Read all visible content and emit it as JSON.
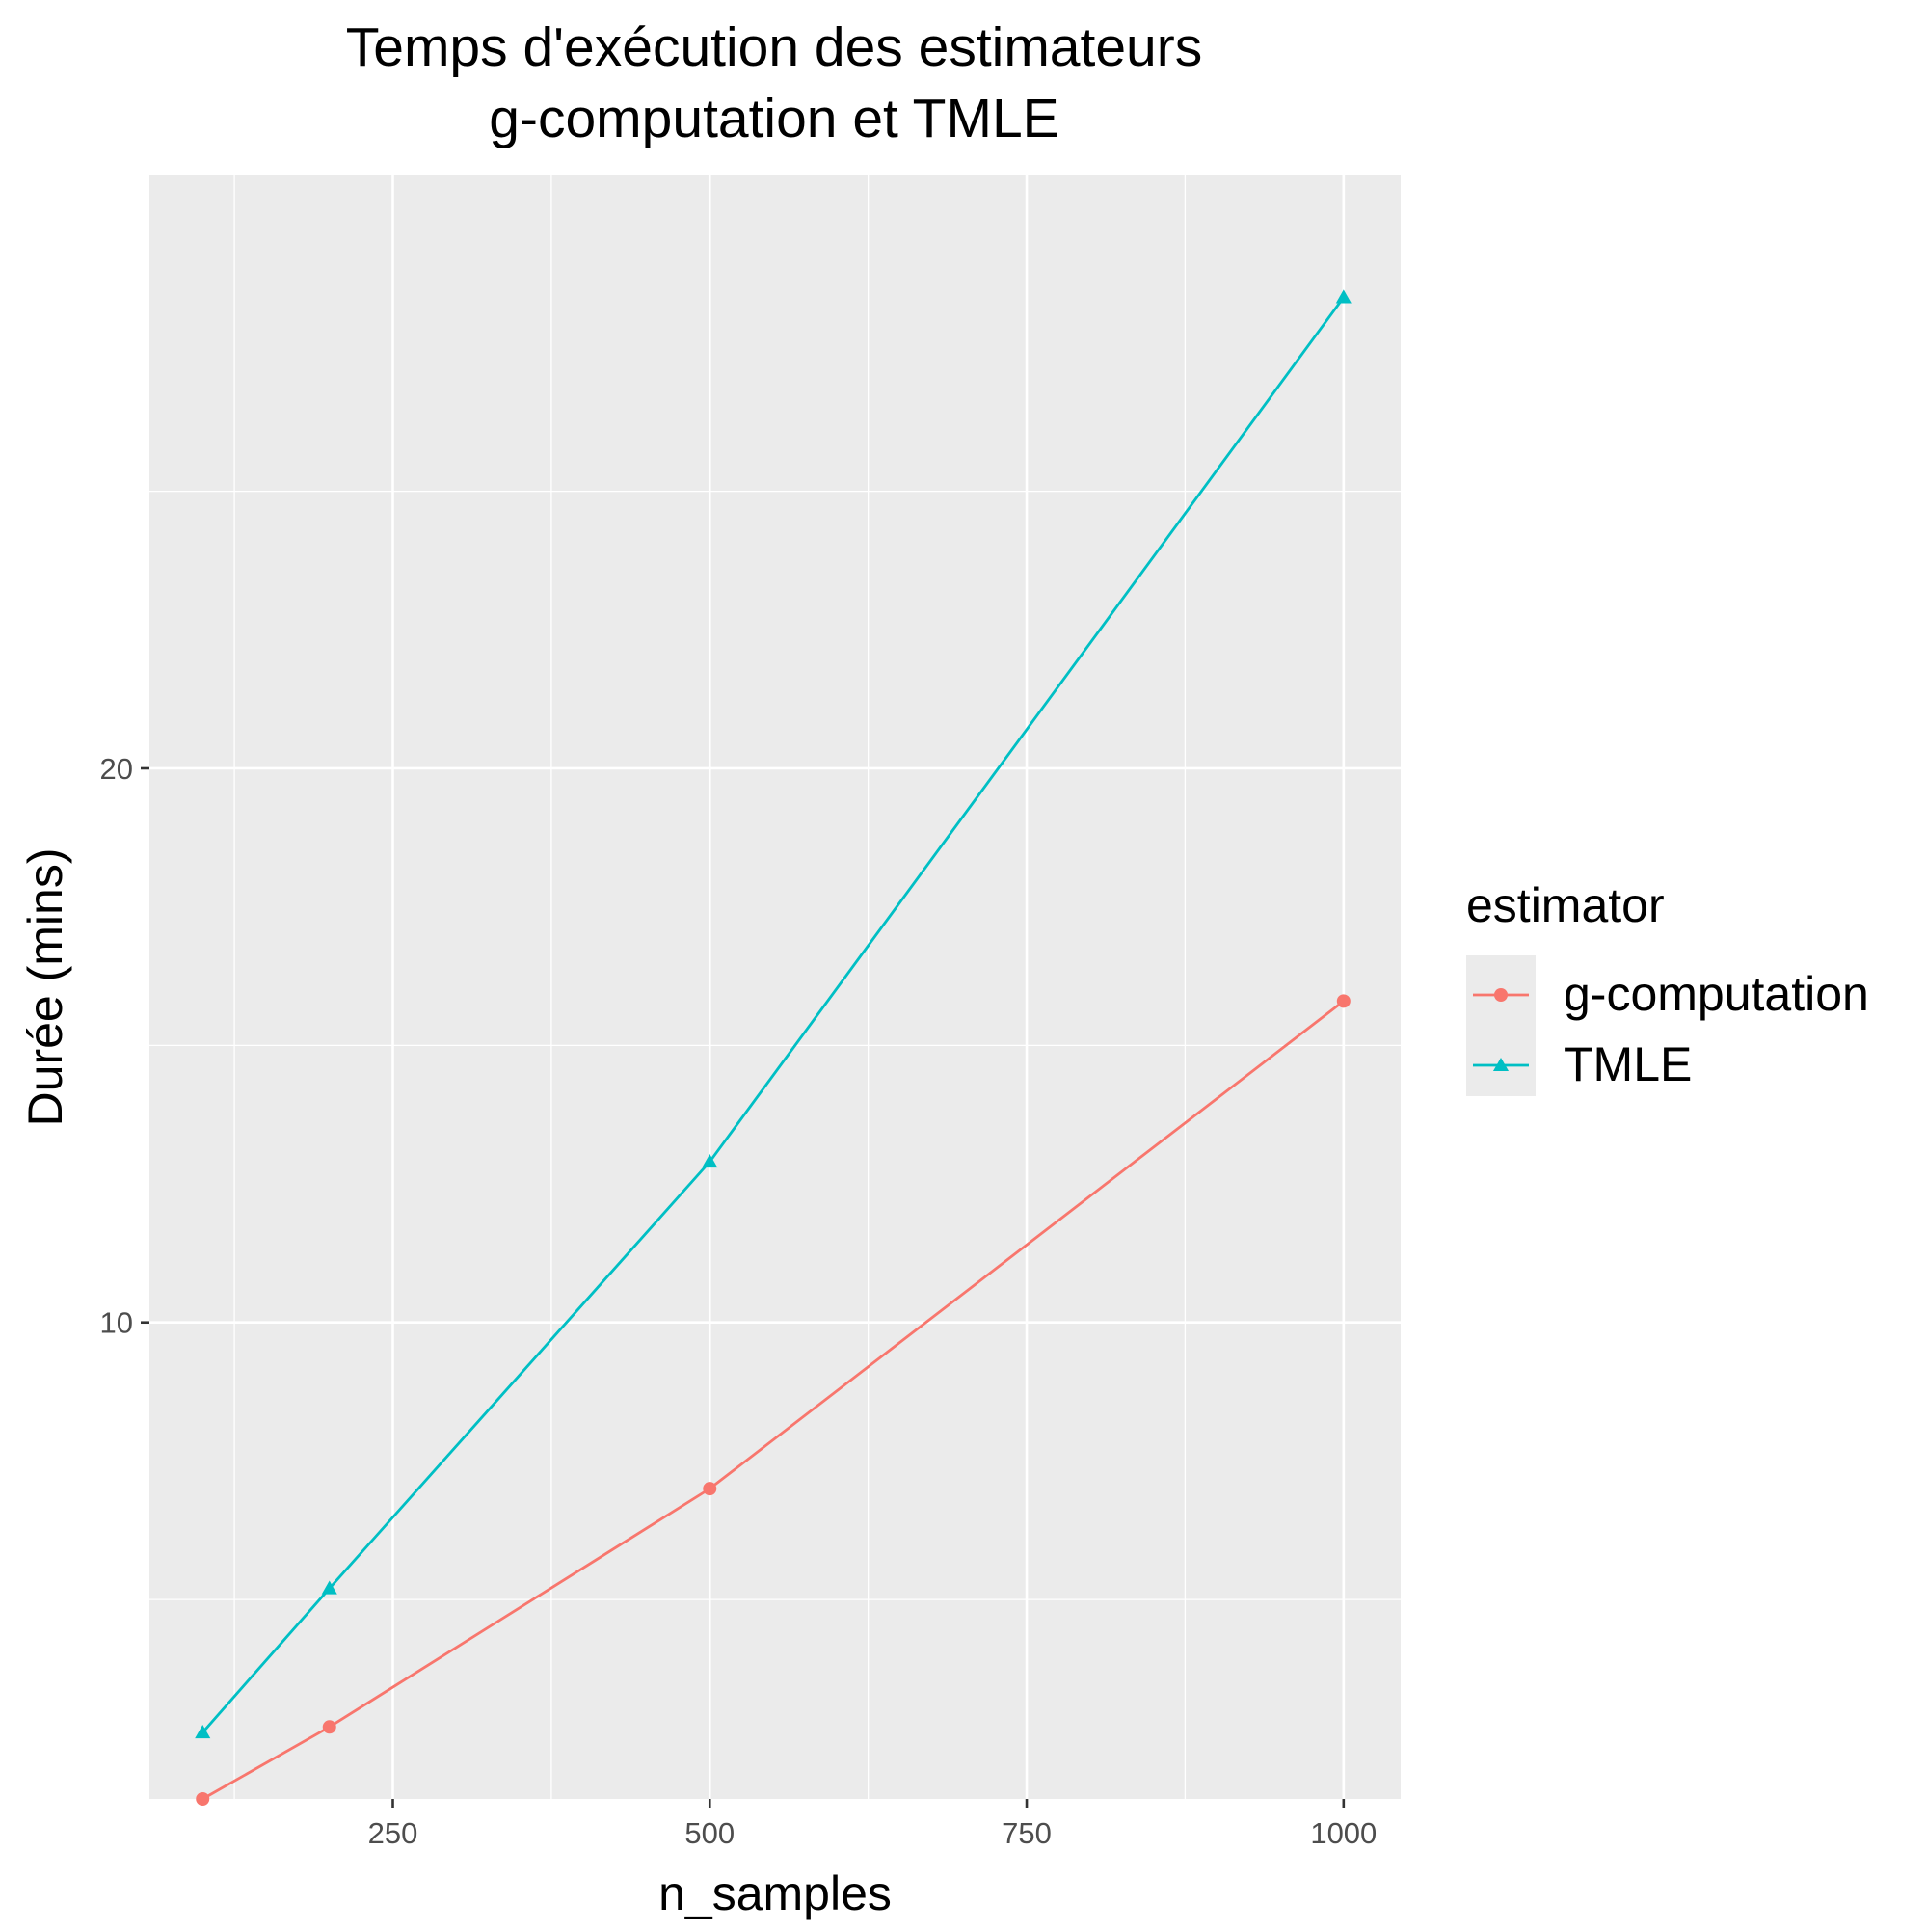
{
  "chart_data": {
    "type": "line",
    "title": {
      "line1": "Temps d'exécution des estimateurs",
      "line2": "g-computation et TMLE"
    },
    "xlabel": "n_samples",
    "ylabel": "Durée (mins)",
    "xlim": [
      58,
      1045
    ],
    "ylim": [
      1.4,
      30.7
    ],
    "x_ticks": [
      250,
      500,
      750,
      1000
    ],
    "x_minor_ticks": [
      125,
      375,
      625,
      875
    ],
    "y_ticks": [
      10,
      20
    ],
    "y_minor_ticks": [
      5,
      15,
      25
    ],
    "grid": true,
    "legend": {
      "title": "estimator",
      "position": "right"
    },
    "x": [
      100,
      200,
      500,
      1000
    ],
    "series": [
      {
        "name": "g-computation",
        "color": "#F8766D",
        "marker": "circle",
        "values": [
          1.4,
          2.7,
          7.0,
          15.8
        ]
      },
      {
        "name": "TMLE",
        "color": "#00BFC4",
        "marker": "triangle",
        "values": [
          2.6,
          5.2,
          12.9,
          28.5
        ]
      }
    ]
  }
}
